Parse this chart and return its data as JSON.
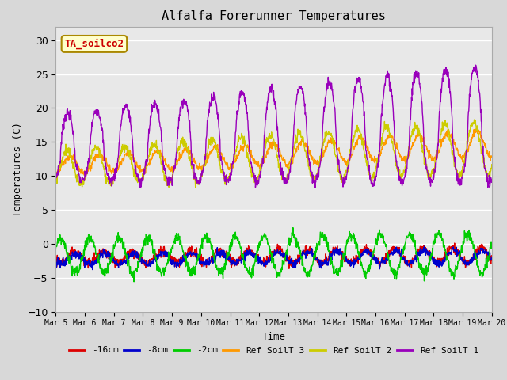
{
  "title": "Alfalfa Forerunner Temperatures",
  "xlabel": "Time",
  "ylabel": "Temperatures (C)",
  "annotation": "TA_soilco2",
  "annotation_color": "#cc0000",
  "annotation_bg": "#ffffcc",
  "annotation_border": "#aa8800",
  "ylim": [
    -10,
    32
  ],
  "xlim": [
    0,
    15
  ],
  "bg_color": "#d8d8d8",
  "plot_bg": "#e8e8e8",
  "legend_entries": [
    "-16cm",
    "-8cm",
    "-2cm",
    "Ref_SoilT_3",
    "Ref_SoilT_2",
    "Ref_SoilT_1"
  ],
  "legend_colors": [
    "#dd0000",
    "#0000cc",
    "#00cc00",
    "#ff9900",
    "#cccc00",
    "#9900bb"
  ],
  "x_tick_labels": [
    "Mar 5",
    "Mar 6",
    "Mar 7",
    "Mar 8",
    "Mar 9",
    "Mar 10",
    "Mar 11",
    "Mar 12",
    "Mar 13",
    "Mar 14",
    "Mar 15",
    "Mar 16",
    "Mar 17",
    "Mar 18",
    "Mar 19",
    "Mar 20"
  ],
  "yticks": [
    -10,
    -5,
    0,
    5,
    10,
    15,
    20,
    25,
    30
  ],
  "n_points": 1440,
  "font_family": "monospace"
}
